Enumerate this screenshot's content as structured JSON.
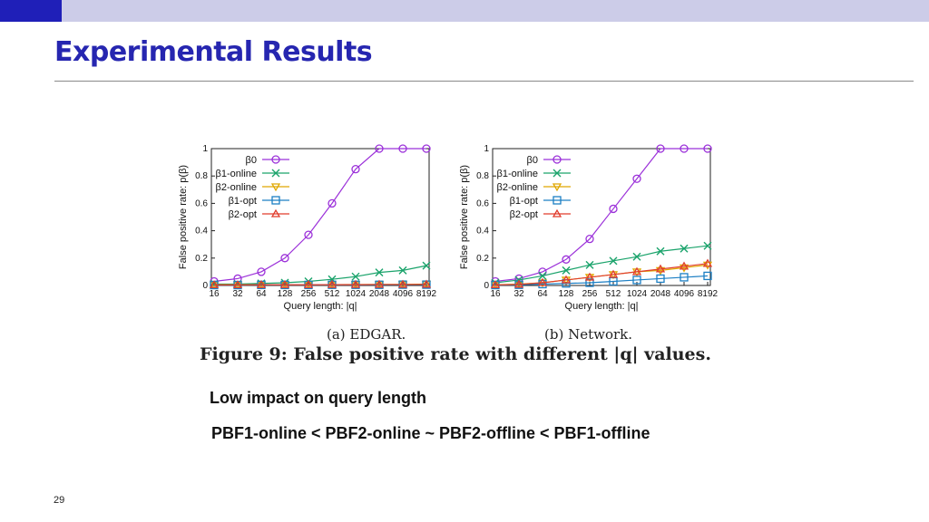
{
  "slide": {
    "title": "Experimental Results",
    "page_number": "29",
    "notes": [
      "Low impact on query length",
      "PBF1-online < PBF2-online ~ PBF2-offline < PBF1-offline"
    ],
    "colors": {
      "accent": "#1f1fb8",
      "topbar": "#cccce8",
      "title": "#2626b0"
    }
  },
  "figure": {
    "caption": "Figure 9: False positive rate with different |q| values."
  },
  "chart_data": [
    {
      "type": "line",
      "subcaption": "(a) EDGAR.",
      "xlabel": "Query length: |q|",
      "ylabel": "False positive rate: p(β)",
      "categories": [
        "16",
        "32",
        "64",
        "128",
        "256",
        "512",
        "1024",
        "2048",
        "4096",
        "8192"
      ],
      "yticks": [
        "0",
        "0.2",
        "0.4",
        "0.6",
        "0.8",
        "1"
      ],
      "ylim": [
        0,
        1
      ],
      "legend_position": "top-left",
      "series": [
        {
          "name": "β0",
          "marker": "circle",
          "color": "#9b30d9",
          "values": [
            0.03,
            0.05,
            0.1,
            0.2,
            0.37,
            0.6,
            0.85,
            1.0,
            1.0,
            1.0
          ]
        },
        {
          "name": "β1-online",
          "marker": "x",
          "color": "#1aa36b",
          "values": [
            0.01,
            0.01,
            0.015,
            0.02,
            0.03,
            0.045,
            0.065,
            0.095,
            0.11,
            0.145
          ]
        },
        {
          "name": "β2-online",
          "marker": "triangle-down",
          "color": "#e0a800",
          "values": [
            0.005,
            0.005,
            0.005,
            0.005,
            0.006,
            0.006,
            0.007,
            0.008,
            0.008,
            0.01
          ]
        },
        {
          "name": "β1-opt",
          "marker": "square",
          "color": "#1c7fc4",
          "values": [
            0.003,
            0.003,
            0.004,
            0.004,
            0.004,
            0.005,
            0.005,
            0.005,
            0.006,
            0.006
          ]
        },
        {
          "name": "β2-opt",
          "marker": "triangle-up",
          "color": "#e03c2c",
          "values": [
            0.004,
            0.004,
            0.005,
            0.005,
            0.005,
            0.006,
            0.006,
            0.007,
            0.007,
            0.008
          ]
        }
      ]
    },
    {
      "type": "line",
      "subcaption": "(b) Network.",
      "xlabel": "Query length: |q|",
      "ylabel": "False positive rate: p(β)",
      "categories": [
        "16",
        "32",
        "64",
        "128",
        "256",
        "512",
        "1024",
        "2048",
        "4096",
        "8192"
      ],
      "yticks": [
        "0",
        "0.2",
        "0.4",
        "0.6",
        "0.8",
        "1"
      ],
      "ylim": [
        0,
        1
      ],
      "legend_position": "top-left",
      "series": [
        {
          "name": "β0",
          "marker": "circle",
          "color": "#9b30d9",
          "values": [
            0.03,
            0.05,
            0.1,
            0.19,
            0.34,
            0.56,
            0.78,
            1.0,
            1.0,
            1.0
          ]
        },
        {
          "name": "β1-online",
          "marker": "x",
          "color": "#1aa36b",
          "values": [
            0.02,
            0.04,
            0.07,
            0.11,
            0.15,
            0.18,
            0.21,
            0.25,
            0.27,
            0.29
          ]
        },
        {
          "name": "β2-online",
          "marker": "triangle-down",
          "color": "#e0a800",
          "values": [
            0.005,
            0.01,
            0.02,
            0.04,
            0.06,
            0.08,
            0.1,
            0.11,
            0.13,
            0.15
          ]
        },
        {
          "name": "β1-opt",
          "marker": "square",
          "color": "#1c7fc4",
          "values": [
            0.003,
            0.005,
            0.01,
            0.015,
            0.02,
            0.03,
            0.04,
            0.05,
            0.06,
            0.07
          ]
        },
        {
          "name": "β2-opt",
          "marker": "triangle-up",
          "color": "#e03c2c",
          "values": [
            0.004,
            0.008,
            0.02,
            0.04,
            0.06,
            0.08,
            0.1,
            0.12,
            0.14,
            0.16
          ]
        }
      ]
    }
  ]
}
